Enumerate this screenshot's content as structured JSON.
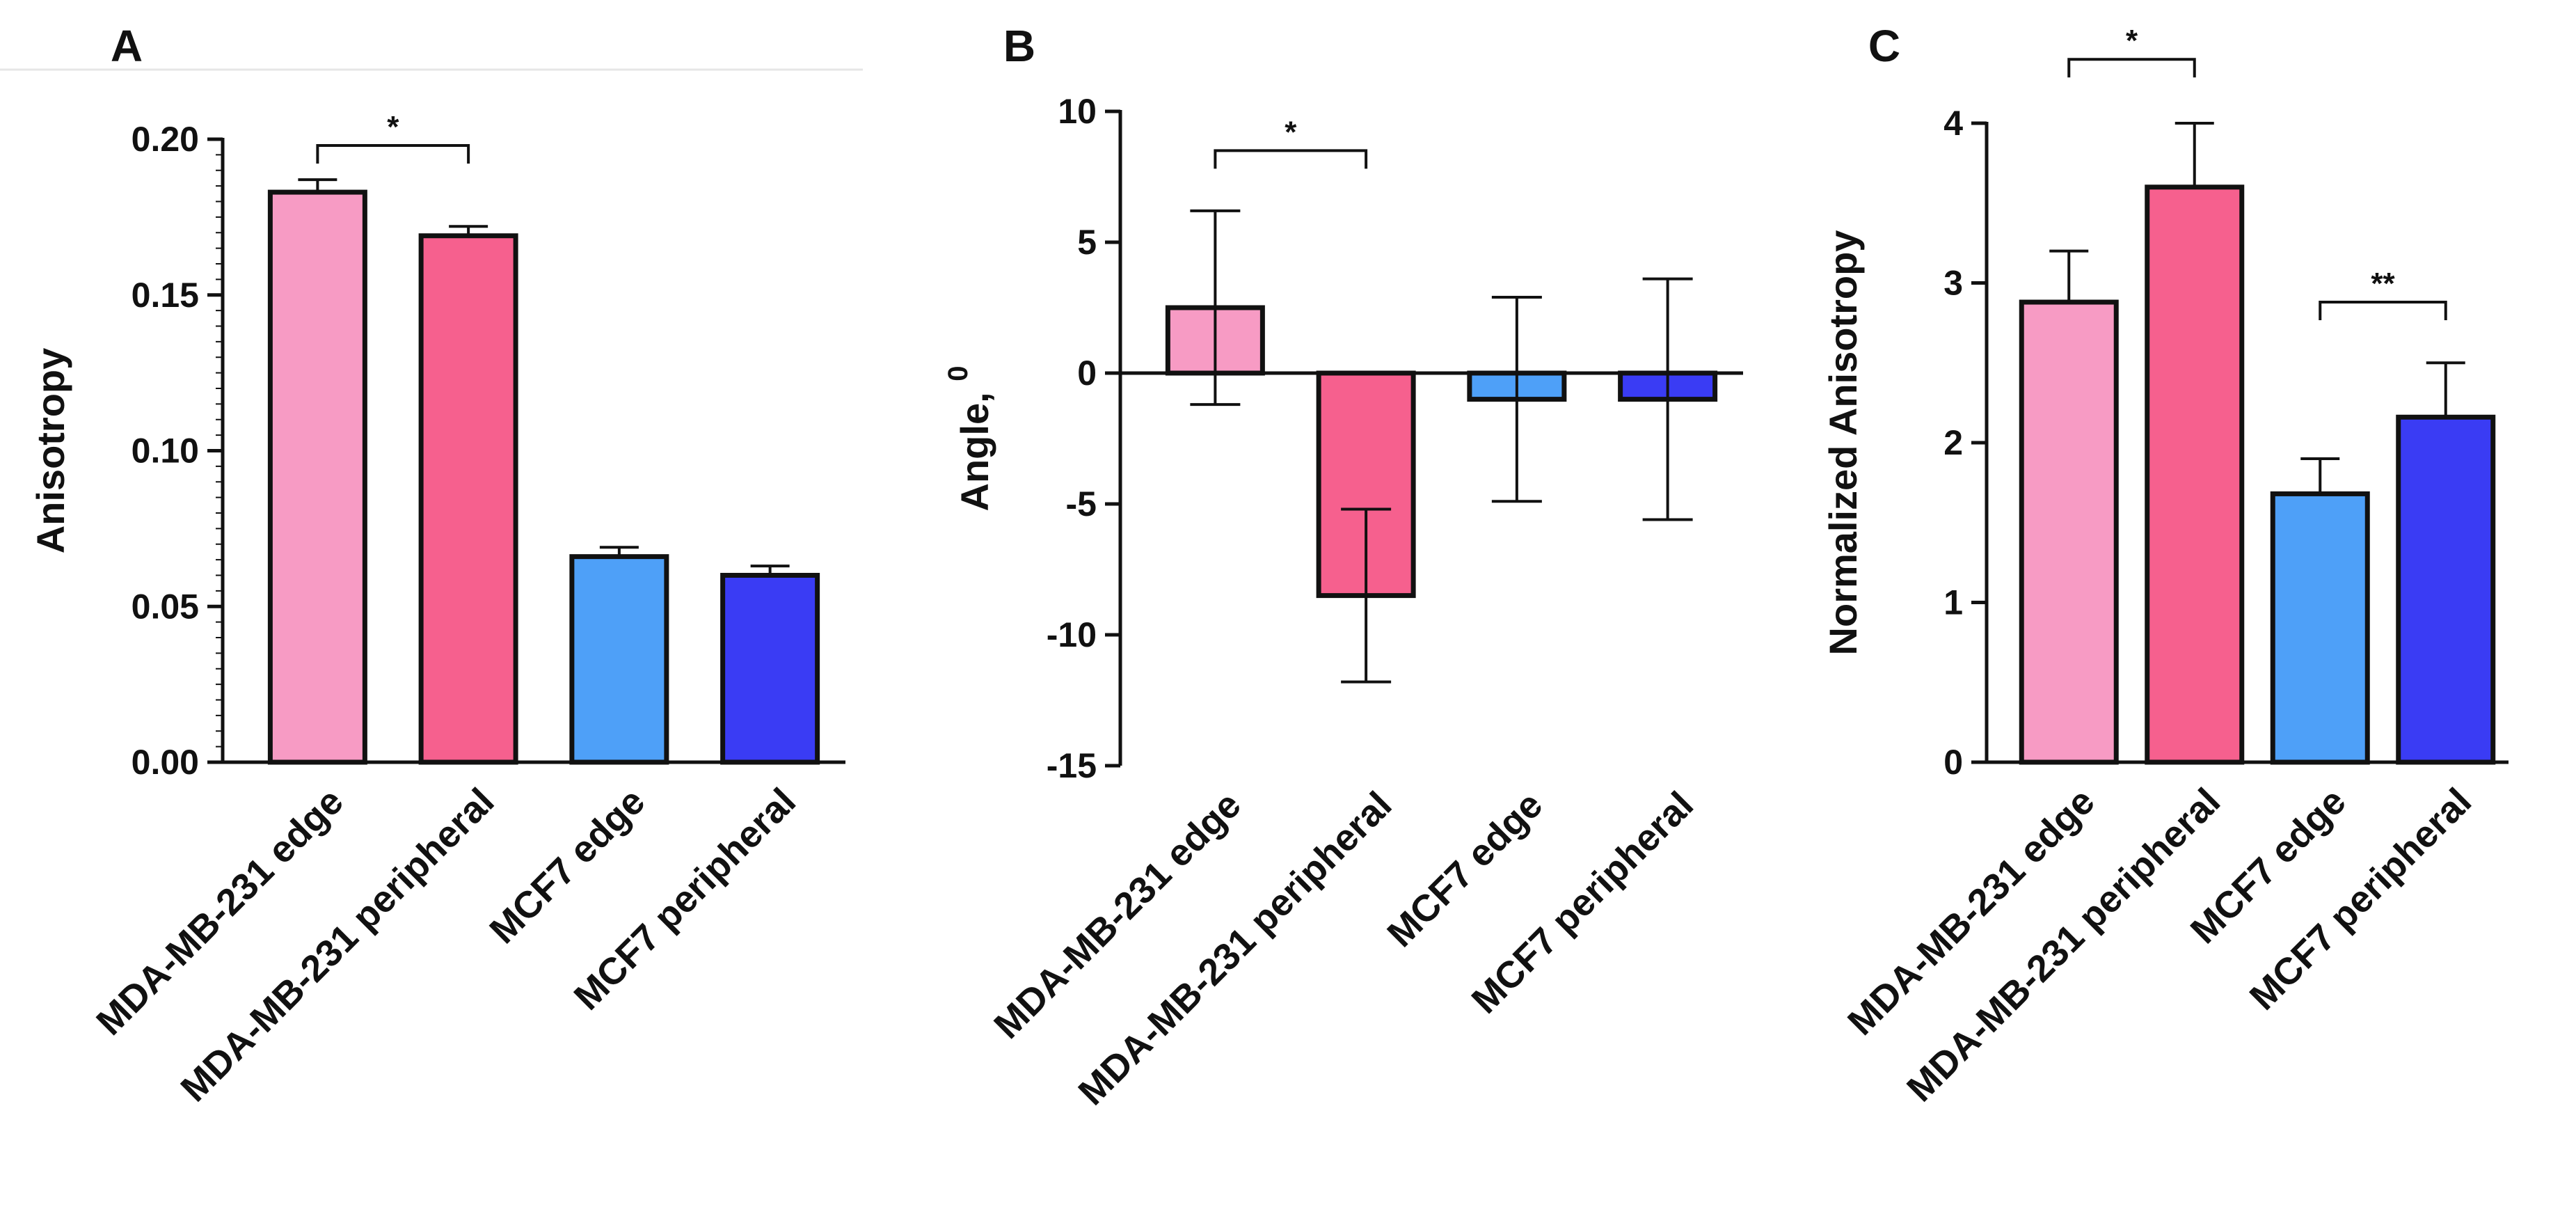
{
  "chart_data": [
    {
      "panel": "A",
      "type": "bar",
      "title": "",
      "xlabel": "",
      "ylabel": "Anisotropy",
      "categories": [
        "MDA-MB-231 edge",
        "MDA-MB-231 peripheral",
        "MCF7 edge",
        "MCF7 peripheral"
      ],
      "values": [
        0.183,
        0.169,
        0.066,
        0.06
      ],
      "errors": [
        0.004,
        0.003,
        0.003,
        0.003
      ],
      "ylim": [
        0,
        0.2
      ],
      "yticks": [
        0.0,
        0.05,
        0.1,
        0.15,
        0.2
      ],
      "ytick_labels": [
        "0.00",
        "0.05",
        "0.10",
        "0.15",
        "0.20"
      ],
      "significance": [
        {
          "from": 0,
          "to": 1,
          "label": "*",
          "y": 0.198
        }
      ]
    },
    {
      "panel": "B",
      "type": "bar",
      "title": "",
      "xlabel": "",
      "ylabel": "Angle, ",
      "ylabel_superscript": "0",
      "categories": [
        "MDA-MB-231 edge",
        "MDA-MB-231 peripheral",
        "MCF7 edge",
        "MCF7 peripheral"
      ],
      "values": [
        2.5,
        -8.5,
        -1.0,
        -1.0
      ],
      "errors": [
        3.7,
        3.3,
        3.9,
        4.6
      ],
      "error_direction": [
        "both",
        "both",
        "both",
        "both"
      ],
      "ylim": [
        -15,
        10
      ],
      "yticks": [
        -15,
        -10,
        -5,
        0,
        5,
        10
      ],
      "ytick_labels": [
        "-15",
        "-10",
        "-5",
        "0",
        "5",
        "10"
      ],
      "significance": [
        {
          "from": 0,
          "to": 1,
          "label": "*",
          "y": 8.5
        }
      ]
    },
    {
      "panel": "C",
      "type": "bar",
      "title": "",
      "xlabel": "",
      "ylabel": "Normalized  Anisotropy",
      "categories": [
        "MDA-MB-231 edge",
        "MDA-MB-231 peripheral",
        "MCF7 edge",
        "MCF7 peripheral"
      ],
      "values": [
        2.88,
        3.6,
        1.68,
        2.16
      ],
      "errors": [
        0.32,
        0.4,
        0.22,
        0.34
      ],
      "ylim": [
        0,
        4
      ],
      "yticks": [
        0,
        1,
        2,
        3,
        4
      ],
      "ytick_labels": [
        "0",
        "1",
        "2",
        "3",
        "4"
      ],
      "significance": [
        {
          "from": 0,
          "to": 1,
          "label": "*",
          "y": 4.4
        },
        {
          "from": 2,
          "to": 3,
          "label": "**",
          "y": 2.88
        }
      ]
    }
  ],
  "colors": {
    "bars": [
      "#F79BC4",
      "#F6608E",
      "#4EA0F8",
      "#3A3CF4"
    ],
    "stroke": "#111111",
    "divider": "#e6e6e6"
  }
}
